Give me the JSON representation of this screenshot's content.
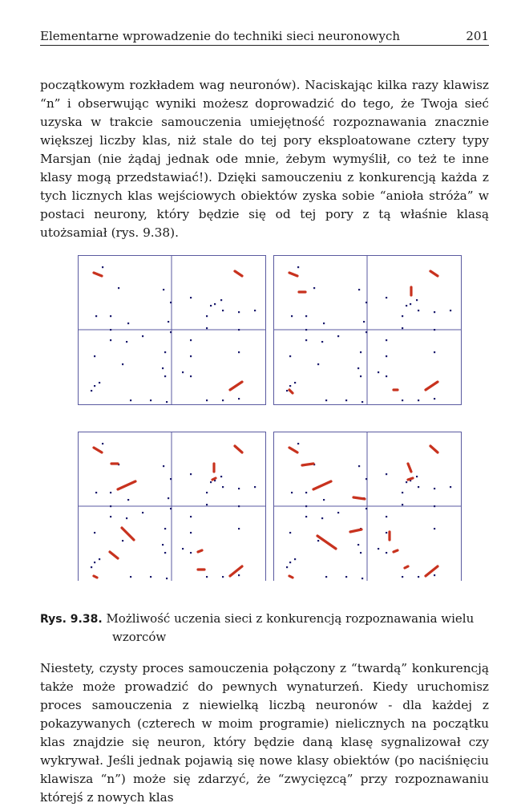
{
  "header": {
    "title": "Elementarne wprowadzenie do techniki sieci neuronowych",
    "page_number": "201"
  },
  "paragraph1": "początkowym rozkładem wag neuronów). Naciskając kilka razy klawisz “n” i obserwując wyniki możesz doprowadzić do tego, że Twoja sieć uzyska w trakcie samouczenia umiejętność rozpoznawania znacznie większej liczby klas, niż stale do tej pory eksploatowane cztery typy Marsjan (nie żądaj jednak ode mnie, żebym wymyślił, co też te inne klasy mogą przedstawiać!). Dzięki samouczeniu z konkurencją każda z tych licznych klas wejściowych obiektów zyska sobie “anioła stróża” w postaci neurony, który będzie się od tej pory z tą właśnie klasą utożsamiał (rys. 9.38).",
  "caption": {
    "label": "Rys. 9.38.",
    "line1": "Możliwość uczenia sieci z konkurencją rozpoznawania wielu",
    "line2": "wzorców"
  },
  "paragraph2": "Niestety, czysty proces samouczenia połączony z “twardą” konkurencją także może prowadzić do pewnych wynaturzeń. Kiedy uruchomisz proces samouczenia z niewielką liczbą neuronów - dla każdej z pokazywanych (czterech w moim programie) nielicznych na początku klas znajdzie się neuron, który będzie daną klasę sygnalizował czy wykrywał. Jeśli jednak pojawią się nowe klasy obiektów (po naciśnięciu klawisza “n”) może się zdarzyć, że “zwycięzcą” przy rozpoznawaniu którejś z nowych klas",
  "colors": {
    "frame": "#5a5aa0",
    "dot": "#1c1c6e",
    "trace": "#c8321e",
    "trace_light": "#e89a9a"
  }
}
